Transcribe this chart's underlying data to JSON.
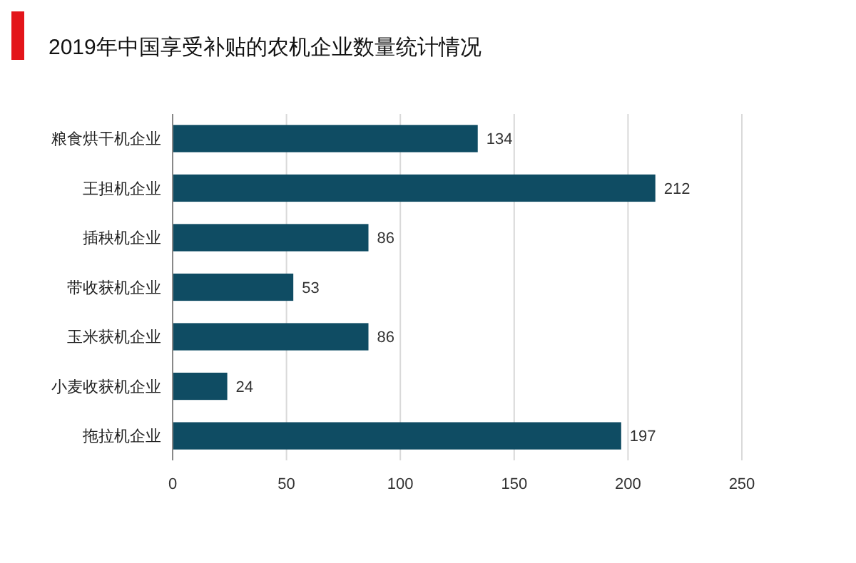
{
  "chart_data": {
    "type": "bar",
    "orientation": "horizontal",
    "title": "2019年中国享受补贴的农机企业数量统计情况",
    "categories": [
      "粮食烘干机企业",
      "王担机企业",
      "插秧机企业",
      "带收获机企业",
      "玉米获机企业",
      "小麦收获机企业",
      "拖拉机企业"
    ],
    "values": [
      134,
      212,
      86,
      53,
      86,
      24,
      197
    ],
    "color": "#0f4c63",
    "data_labels": true,
    "xlim": [
      0,
      250
    ],
    "xticks": [
      0,
      50,
      100,
      150,
      200,
      250
    ],
    "grid": "x"
  }
}
